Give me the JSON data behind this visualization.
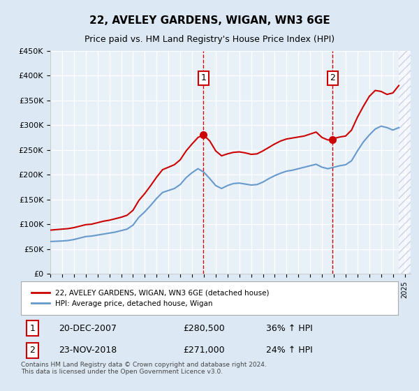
{
  "title": "22, AVELEY GARDENS, WIGAN, WN3 6GE",
  "subtitle": "Price paid vs. HM Land Registry's House Price Index (HPI)",
  "legend_label_red": "22, AVELEY GARDENS, WIGAN, WN3 6GE (detached house)",
  "legend_label_blue": "HPI: Average price, detached house, Wigan",
  "sale1_label": "1",
  "sale1_date": "20-DEC-2007",
  "sale1_price": "£280,500",
  "sale1_hpi": "36% ↑ HPI",
  "sale1_year": 2007.96,
  "sale1_value": 280500,
  "sale2_label": "2",
  "sale2_date": "23-NOV-2018",
  "sale2_price": "£271,000",
  "sale2_hpi": "24% ↑ HPI",
  "sale2_year": 2018.9,
  "sale2_value": 271000,
  "footer": "Contains HM Land Registry data © Crown copyright and database right 2024.\nThis data is licensed under the Open Government Licence v3.0.",
  "ylim": [
    0,
    450000
  ],
  "xlim": [
    1995,
    2025.5
  ],
  "yticks": [
    0,
    50000,
    100000,
    150000,
    200000,
    250000,
    300000,
    350000,
    400000,
    450000
  ],
  "ytick_labels": [
    "£0",
    "£50K",
    "£100K",
    "£150K",
    "£200K",
    "£250K",
    "£300K",
    "£350K",
    "£400K",
    "£450K"
  ],
  "bg_color": "#dce9f5",
  "plot_bg_color": "#e8f0f8",
  "red_color": "#cc0000",
  "blue_color": "#6699cc",
  "grid_color": "#ffffff",
  "hpi_red_data_x": [
    1995.0,
    1995.5,
    1996.0,
    1996.5,
    1997.0,
    1997.5,
    1998.0,
    1998.5,
    1999.0,
    1999.5,
    2000.0,
    2000.5,
    2001.0,
    2001.5,
    2002.0,
    2002.5,
    2003.0,
    2003.5,
    2004.0,
    2004.5,
    2005.0,
    2005.5,
    2006.0,
    2006.5,
    2007.0,
    2007.5,
    2007.96,
    2008.5,
    2009.0,
    2009.5,
    2010.0,
    2010.5,
    2011.0,
    2011.5,
    2012.0,
    2012.5,
    2013.0,
    2013.5,
    2014.0,
    2014.5,
    2015.0,
    2015.5,
    2016.0,
    2016.5,
    2017.0,
    2017.5,
    2018.0,
    2018.5,
    2018.9,
    2019.0,
    2019.5,
    2020.0,
    2020.5,
    2021.0,
    2021.5,
    2022.0,
    2022.5,
    2023.0,
    2023.5,
    2024.0,
    2024.5
  ],
  "hpi_red_data_y": [
    88000,
    89000,
    90000,
    91000,
    93000,
    96000,
    99000,
    100000,
    103000,
    106000,
    108000,
    111000,
    114000,
    118000,
    128000,
    148000,
    162000,
    178000,
    195000,
    210000,
    215000,
    220000,
    230000,
    248000,
    262000,
    275000,
    280500,
    268000,
    248000,
    238000,
    242000,
    245000,
    246000,
    244000,
    241000,
    242000,
    248000,
    255000,
    262000,
    268000,
    272000,
    274000,
    276000,
    278000,
    282000,
    286000,
    275000,
    270000,
    271000,
    273000,
    276000,
    278000,
    290000,
    316000,
    338000,
    358000,
    370000,
    368000,
    362000,
    365000,
    380000
  ],
  "hpi_blue_data_x": [
    1995.0,
    1995.5,
    1996.0,
    1996.5,
    1997.0,
    1997.5,
    1998.0,
    1998.5,
    1999.0,
    1999.5,
    2000.0,
    2000.5,
    2001.0,
    2001.5,
    2002.0,
    2002.5,
    2003.0,
    2003.5,
    2004.0,
    2004.5,
    2005.0,
    2005.5,
    2006.0,
    2006.5,
    2007.0,
    2007.5,
    2008.0,
    2008.5,
    2009.0,
    2009.5,
    2010.0,
    2010.5,
    2011.0,
    2011.5,
    2012.0,
    2012.5,
    2013.0,
    2013.5,
    2014.0,
    2014.5,
    2015.0,
    2015.5,
    2016.0,
    2016.5,
    2017.0,
    2017.5,
    2018.0,
    2018.5,
    2019.0,
    2019.5,
    2020.0,
    2020.5,
    2021.0,
    2021.5,
    2022.0,
    2022.5,
    2023.0,
    2023.5,
    2024.0,
    2024.5
  ],
  "hpi_blue_data_y": [
    65000,
    65500,
    66000,
    67000,
    69000,
    72000,
    75000,
    76000,
    78000,
    80000,
    82000,
    84000,
    87000,
    90000,
    98000,
    114000,
    125000,
    138000,
    152000,
    164000,
    168000,
    172000,
    180000,
    194000,
    204000,
    212000,
    205000,
    192000,
    178000,
    172000,
    178000,
    182000,
    183000,
    181000,
    179000,
    180000,
    185000,
    192000,
    198000,
    203000,
    207000,
    209000,
    212000,
    215000,
    218000,
    221000,
    215000,
    212000,
    215000,
    218000,
    220000,
    228000,
    248000,
    266000,
    280000,
    292000,
    298000,
    295000,
    290000,
    295000
  ]
}
